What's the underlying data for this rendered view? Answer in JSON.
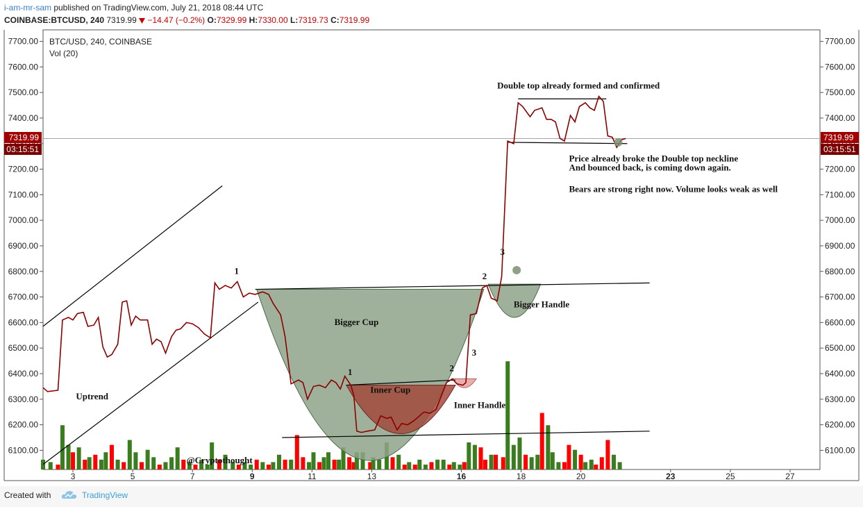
{
  "header": {
    "author": "i-am-mr-sam",
    "published_text": " published on TradingView.com, July 21, 2018 08:44 UTC",
    "symbol": "COINBASE:BTCUSD, 240",
    "last": "7319.99",
    "change_arrow": "down-triangle-icon",
    "change": "−14.47 (−0.2%)",
    "o_label": "O:",
    "o_value": "7329.99",
    "h_label": "H:",
    "h_value": "7330.00",
    "l_label": "L:",
    "l_value": "7319.73",
    "c_label": "C:",
    "c_value": "7319.99"
  },
  "legend": {
    "series_title": "BTC/USD, 240, COINBASE",
    "volume_title": "Vol (20)"
  },
  "price_badge": {
    "value": "7319.99",
    "countdown": "03:15:51"
  },
  "footer": {
    "created_with": "Created with",
    "brand": "TradingView"
  },
  "colors": {
    "price_line": "#8b0000",
    "volume_up": "#3a7d1e",
    "volume_down": "#ff0000",
    "cup_fill": "#8fa38a",
    "inner_cup_fill": "#a14a3c",
    "inner_handle_fill": "#e8a0a0",
    "badge_bg": "#a30000",
    "author_link": "#3a7fd0"
  },
  "chart_data": {
    "type": "line",
    "symbol": "BTC/USD",
    "interval": "240",
    "y_axis": {
      "min": 6025,
      "max": 7745,
      "ticks": [
        6100,
        6200,
        6300,
        6400,
        6500,
        6600,
        6700,
        6800,
        6900,
        7000,
        7100,
        7200,
        7300,
        7400,
        7500,
        7600,
        7700
      ],
      "tick_labels": [
        "6100.00",
        "6200.00",
        "6300.00",
        "6400.00",
        "6500.00",
        "6600.00",
        "6700.00",
        "6800.00",
        "6900.00",
        "7000.00",
        "7100.00",
        "7200.00",
        "7300.00",
        "7400.00",
        "7500.00",
        "7600.00",
        "7700.00"
      ],
      "sides": [
        "left",
        "right"
      ]
    },
    "x_axis": {
      "min": 2,
      "max": 28,
      "ticks": [
        {
          "x": 3,
          "label": "3",
          "bold": false
        },
        {
          "x": 5,
          "label": "5",
          "bold": false
        },
        {
          "x": 7,
          "label": "7",
          "bold": false
        },
        {
          "x": 9,
          "label": "9",
          "bold": true
        },
        {
          "x": 11,
          "label": "11",
          "bold": false
        },
        {
          "x": 13,
          "label": "13",
          "bold": false
        },
        {
          "x": 16,
          "label": "16",
          "bold": true
        },
        {
          "x": 18,
          "label": "18",
          "bold": false
        },
        {
          "x": 20,
          "label": "20",
          "bold": false
        },
        {
          "x": 23,
          "label": "23",
          "bold": true
        },
        {
          "x": 25,
          "label": "25",
          "bold": false
        },
        {
          "x": 27,
          "label": "27",
          "bold": false
        }
      ]
    },
    "price_series": [
      [
        2.0,
        6345
      ],
      [
        2.15,
        6330
      ],
      [
        2.5,
        6335
      ],
      [
        2.65,
        6610
      ],
      [
        2.85,
        6620
      ],
      [
        3.0,
        6610
      ],
      [
        3.15,
        6635
      ],
      [
        3.35,
        6640
      ],
      [
        3.5,
        6585
      ],
      [
        3.7,
        6590
      ],
      [
        3.85,
        6620
      ],
      [
        4.0,
        6505
      ],
      [
        4.15,
        6465
      ],
      [
        4.3,
        6475
      ],
      [
        4.5,
        6515
      ],
      [
        4.65,
        6680
      ],
      [
        4.8,
        6685
      ],
      [
        4.95,
        6590
      ],
      [
        5.1,
        6625
      ],
      [
        5.25,
        6610
      ],
      [
        5.5,
        6610
      ],
      [
        5.65,
        6515
      ],
      [
        5.8,
        6535
      ],
      [
        5.95,
        6525
      ],
      [
        6.1,
        6480
      ],
      [
        6.3,
        6545
      ],
      [
        6.45,
        6570
      ],
      [
        6.6,
        6575
      ],
      [
        6.8,
        6600
      ],
      [
        7.0,
        6595
      ],
      [
        7.2,
        6580
      ],
      [
        7.4,
        6555
      ],
      [
        7.6,
        6540
      ],
      [
        7.75,
        6755
      ],
      [
        7.9,
        6730
      ],
      [
        8.1,
        6745
      ],
      [
        8.3,
        6735
      ],
      [
        8.5,
        6760
      ],
      [
        8.7,
        6700
      ],
      [
        8.9,
        6715
      ],
      [
        9.1,
        6710
      ],
      [
        9.35,
        6720
      ],
      [
        9.55,
        6710
      ],
      [
        9.7,
        6675
      ],
      [
        9.95,
        6630
      ],
      [
        10.1,
        6545
      ],
      [
        10.3,
        6360
      ],
      [
        10.55,
        6375
      ],
      [
        10.7,
        6365
      ],
      [
        10.85,
        6300
      ],
      [
        11.05,
        6350
      ],
      [
        11.25,
        6355
      ],
      [
        11.45,
        6345
      ],
      [
        11.65,
        6375
      ],
      [
        11.8,
        6365
      ],
      [
        11.95,
        6340
      ],
      [
        12.1,
        6390
      ],
      [
        12.3,
        6355
      ],
      [
        12.4,
        6315
      ],
      [
        12.5,
        6175
      ],
      [
        12.65,
        6170
      ],
      [
        12.85,
        6175
      ],
      [
        13.1,
        6180
      ],
      [
        13.3,
        6235
      ],
      [
        13.5,
        6225
      ],
      [
        13.65,
        6230
      ],
      [
        13.85,
        6180
      ],
      [
        14.0,
        6205
      ],
      [
        14.2,
        6200
      ],
      [
        14.4,
        6215
      ],
      [
        14.6,
        6235
      ],
      [
        14.75,
        6250
      ],
      [
        14.95,
        6245
      ],
      [
        15.15,
        6260
      ],
      [
        15.35,
        6320
      ],
      [
        15.5,
        6365
      ],
      [
        15.7,
        6380
      ],
      [
        15.85,
        6360
      ],
      [
        16.05,
        6355
      ],
      [
        16.15,
        6365
      ],
      [
        16.3,
        6630
      ],
      [
        16.5,
        6635
      ],
      [
        16.7,
        6735
      ],
      [
        16.85,
        6745
      ],
      [
        17.0,
        6695
      ],
      [
        17.2,
        6685
      ],
      [
        17.35,
        6780
      ],
      [
        17.55,
        7310
      ],
      [
        17.75,
        7300
      ],
      [
        17.9,
        7460
      ],
      [
        18.05,
        7445
      ],
      [
        18.3,
        7405
      ],
      [
        18.45,
        7430
      ],
      [
        18.7,
        7440
      ],
      [
        18.85,
        7395
      ],
      [
        19.0,
        7395
      ],
      [
        19.15,
        7385
      ],
      [
        19.3,
        7320
      ],
      [
        19.45,
        7310
      ],
      [
        19.65,
        7410
      ],
      [
        19.8,
        7385
      ],
      [
        19.95,
        7445
      ],
      [
        20.15,
        7460
      ],
      [
        20.3,
        7440
      ],
      [
        20.45,
        7430
      ],
      [
        20.6,
        7485
      ],
      [
        20.75,
        7465
      ],
      [
        20.9,
        7330
      ],
      [
        21.05,
        7325
      ],
      [
        21.2,
        7285
      ],
      [
        21.35,
        7315
      ],
      [
        21.5,
        7320
      ]
    ],
    "volume_series": [
      [
        2.0,
        4,
        "up"
      ],
      [
        2.25,
        3,
        "up"
      ],
      [
        2.5,
        2,
        "down"
      ],
      [
        2.65,
        18,
        "up"
      ],
      [
        2.85,
        10,
        "up"
      ],
      [
        3.0,
        7,
        "down"
      ],
      [
        3.2,
        9,
        "up"
      ],
      [
        3.4,
        4,
        "down"
      ],
      [
        3.55,
        5,
        "up"
      ],
      [
        3.75,
        6,
        "down"
      ],
      [
        3.95,
        4,
        "up"
      ],
      [
        4.1,
        7,
        "up"
      ],
      [
        4.3,
        10,
        "down"
      ],
      [
        4.5,
        4,
        "up"
      ],
      [
        4.7,
        3,
        "down"
      ],
      [
        4.9,
        12,
        "up"
      ],
      [
        5.1,
        7,
        "up"
      ],
      [
        5.3,
        3,
        "down"
      ],
      [
        5.5,
        8,
        "up"
      ],
      [
        5.7,
        5,
        "up"
      ],
      [
        5.9,
        2,
        "down"
      ],
      [
        6.1,
        3,
        "up"
      ],
      [
        6.3,
        5,
        "up"
      ],
      [
        6.5,
        9,
        "up"
      ],
      [
        6.7,
        4,
        "down"
      ],
      [
        6.9,
        3,
        "up"
      ],
      [
        7.1,
        2,
        "down"
      ],
      [
        7.3,
        4,
        "up"
      ],
      [
        7.5,
        2,
        "up"
      ],
      [
        7.65,
        11,
        "up"
      ],
      [
        7.9,
        4,
        "down"
      ],
      [
        8.1,
        6,
        "up"
      ],
      [
        8.35,
        3,
        "up"
      ],
      [
        8.55,
        2,
        "down"
      ],
      [
        8.75,
        3,
        "up"
      ],
      [
        8.95,
        2,
        "up"
      ],
      [
        9.15,
        4,
        "down"
      ],
      [
        9.35,
        3,
        "up"
      ],
      [
        9.55,
        2,
        "down"
      ],
      [
        9.7,
        3,
        "up"
      ],
      [
        9.9,
        6,
        "up"
      ],
      [
        10.1,
        4,
        "down"
      ],
      [
        10.3,
        4,
        "up"
      ],
      [
        10.5,
        14,
        "down"
      ],
      [
        10.7,
        5,
        "down"
      ],
      [
        10.9,
        3,
        "up"
      ],
      [
        11.05,
        7,
        "up"
      ],
      [
        11.25,
        3,
        "down"
      ],
      [
        11.4,
        5,
        "up"
      ],
      [
        11.55,
        7,
        "up"
      ],
      [
        11.75,
        4,
        "down"
      ],
      [
        11.9,
        4,
        "up"
      ],
      [
        12.05,
        9,
        "up"
      ],
      [
        12.25,
        5,
        "down"
      ],
      [
        12.4,
        3,
        "down"
      ],
      [
        12.5,
        7,
        "up"
      ],
      [
        12.7,
        7,
        "up"
      ],
      [
        12.95,
        3,
        "down"
      ],
      [
        13.05,
        5,
        "up"
      ],
      [
        13.25,
        4,
        "up"
      ],
      [
        13.5,
        11,
        "up"
      ],
      [
        13.7,
        5,
        "down"
      ],
      [
        13.9,
        6,
        "up"
      ],
      [
        14.1,
        2,
        "down"
      ],
      [
        14.25,
        3,
        "up"
      ],
      [
        14.45,
        2,
        "down"
      ],
      [
        14.6,
        4,
        "up"
      ],
      [
        14.8,
        2,
        "up"
      ],
      [
        15.0,
        3,
        "down"
      ],
      [
        15.2,
        4,
        "up"
      ],
      [
        15.4,
        4,
        "up"
      ],
      [
        15.6,
        2,
        "down"
      ],
      [
        15.75,
        3,
        "up"
      ],
      [
        15.95,
        2,
        "up"
      ],
      [
        16.1,
        3,
        "down"
      ],
      [
        16.25,
        11,
        "up"
      ],
      [
        16.45,
        10,
        "up"
      ],
      [
        16.65,
        9,
        "down"
      ],
      [
        16.8,
        4,
        "down"
      ],
      [
        17.0,
        6,
        "up"
      ],
      [
        17.15,
        6,
        "down"
      ],
      [
        17.4,
        5,
        "down"
      ],
      [
        17.55,
        44,
        "up"
      ],
      [
        17.75,
        10,
        "up"
      ],
      [
        17.95,
        13,
        "up"
      ],
      [
        18.15,
        6,
        "down"
      ],
      [
        18.35,
        5,
        "up"
      ],
      [
        18.55,
        6,
        "up"
      ],
      [
        18.7,
        23,
        "down"
      ],
      [
        18.9,
        18,
        "up"
      ],
      [
        19.05,
        7,
        "up"
      ],
      [
        19.25,
        3,
        "up"
      ],
      [
        19.45,
        3,
        "down"
      ],
      [
        19.6,
        10,
        "down"
      ],
      [
        19.8,
        8,
        "up"
      ],
      [
        20.0,
        6,
        "down"
      ],
      [
        20.15,
        3,
        "up"
      ],
      [
        20.35,
        4,
        "up"
      ],
      [
        20.5,
        2,
        "down"
      ],
      [
        20.7,
        5,
        "down"
      ],
      [
        20.9,
        12,
        "down"
      ],
      [
        21.1,
        6,
        "up"
      ],
      [
        21.3,
        3,
        "up"
      ]
    ],
    "volume_max": 48,
    "annotations": {
      "uptrend_upper_line": [
        [
          2.0,
          6585
        ],
        [
          8.0,
          7135
        ]
      ],
      "uptrend_lower_line": [
        [
          2.0,
          6045
        ],
        [
          9.2,
          6680
        ]
      ],
      "neckline_outer": [
        [
          9.1,
          6730
        ],
        [
          22.3,
          6755
        ]
      ],
      "support_line": [
        [
          10.0,
          6150
        ],
        [
          22.3,
          6175
        ]
      ],
      "inner_cup_rim": [
        [
          12.15,
          6355
        ],
        [
          15.8,
          6375
        ]
      ],
      "double_top_resistance": [
        [
          17.9,
          7475
        ],
        [
          20.85,
          7475
        ]
      ],
      "double_top_neckline": [
        [
          17.55,
          7305
        ],
        [
          21.55,
          7300
        ]
      ],
      "current_price_line": 7319.99,
      "markers": [
        [
          17.85,
          6805
        ],
        [
          21.25,
          7305
        ]
      ],
      "bigger_cup": {
        "x1": 9.15,
        "x2": 16.75,
        "rim_y": 6730,
        "bottom_y": 6060
      },
      "bigger_handle": {
        "x1": 16.9,
        "x2": 18.65,
        "rim_y": 6750,
        "bottom_y": 6620
      },
      "inner_cup": {
        "x1": 12.15,
        "x2": 15.8,
        "rim_y": 6355,
        "bottom_y": 6165
      },
      "inner_handle": {
        "x1": 15.7,
        "x2": 16.5,
        "rim_y": 6380,
        "bottom_y": 6345
      },
      "labels": [
        {
          "x": 8.4,
          "y": 6790,
          "text": "1",
          "key": "lbl_1a"
        },
        {
          "x": 16.7,
          "y": 6770,
          "text": "2",
          "key": "lbl_2a"
        },
        {
          "x": 17.3,
          "y": 6865,
          "text": "3",
          "key": "lbl_3a"
        },
        {
          "x": 12.2,
          "y": 6395,
          "text": "1",
          "key": "lbl_1b"
        },
        {
          "x": 15.6,
          "y": 6410,
          "text": "2",
          "key": "lbl_2b"
        },
        {
          "x": 16.35,
          "y": 6470,
          "text": "3",
          "key": "lbl_3b"
        },
        {
          "x": 3.1,
          "y": 6300,
          "text": "Uptrend",
          "key": "lbl_uptrend"
        },
        {
          "x": 11.75,
          "y": 6590,
          "text": "Bigger Cup",
          "key": "lbl_bigger_cup"
        },
        {
          "x": 17.75,
          "y": 6660,
          "text": "Bigger Handle",
          "key": "lbl_bigger_handle"
        },
        {
          "x": 12.95,
          "y": 6325,
          "text": "Inner Cup",
          "key": "lbl_inner_cup"
        },
        {
          "x": 15.75,
          "y": 6265,
          "text": "Inner Handle",
          "key": "lbl_inner_handle"
        },
        {
          "x": 6.8,
          "y": 6050,
          "text": "@Cryptothought",
          "key": "lbl_watermark"
        },
        {
          "x": 17.2,
          "y": 7515,
          "text": "Double top already formed and confirmed",
          "key": "lbl_double_top"
        },
        {
          "x": 19.6,
          "y": 7230,
          "text": "Price already broke the Double top neckline",
          "key": "lbl_note1"
        },
        {
          "x": 19.6,
          "y": 7195,
          "text": "And bounced back, is coming down again.",
          "key": "lbl_note2"
        },
        {
          "x": 19.6,
          "y": 7110,
          "text": "Bears are strong right now. Volume looks weak as well",
          "key": "lbl_note3"
        }
      ]
    }
  }
}
